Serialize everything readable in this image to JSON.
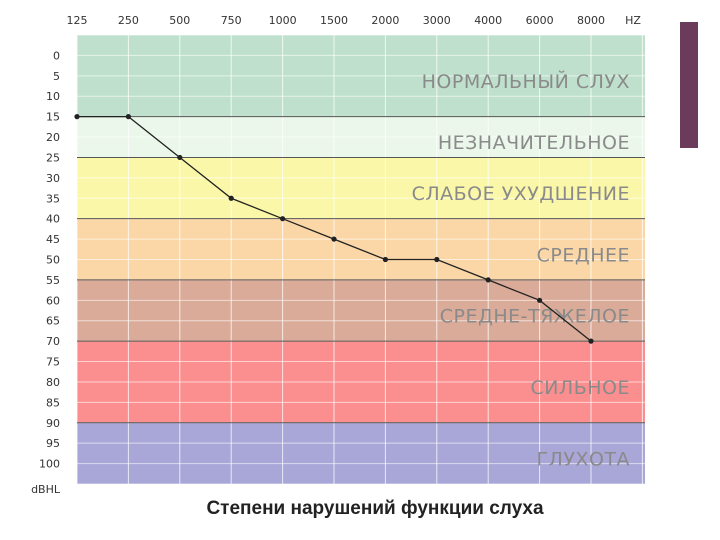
{
  "caption": "Степени нарушений функции слуха",
  "colors": {
    "sidebar_accent": "#6b3b5c",
    "line": "#222222"
  },
  "chart_data": {
    "type": "line",
    "x_ticks": [
      "125",
      "250",
      "500",
      "750",
      "1000",
      "1500",
      "2000",
      "3000",
      "4000",
      "6000",
      "8000"
    ],
    "x_unit_label": "HZ",
    "y_unit_label": "dBHL",
    "ylim": [
      -5,
      105
    ],
    "y_inverted": true,
    "y_ticks": [
      0,
      5,
      10,
      15,
      20,
      25,
      30,
      35,
      40,
      45,
      50,
      55,
      60,
      65,
      70,
      75,
      80,
      85,
      90,
      95,
      100
    ],
    "grid": true,
    "series": [
      {
        "x": [
          "125",
          "250",
          "500",
          "750",
          "1000",
          "1500",
          "2000",
          "3000",
          "4000",
          "6000",
          "8000"
        ],
        "values": [
          15,
          15,
          25,
          35,
          40,
          45,
          50,
          50,
          55,
          60,
          70
        ]
      }
    ],
    "bands": [
      {
        "label": "НОРМАЛЬНЫЙ СЛУХ",
        "from": -5,
        "to": 15,
        "color": "#bfe0cc"
      },
      {
        "label": "НЕЗНАЧИТЕЛЬНОЕ",
        "from": 15,
        "to": 25,
        "color": "#eaf7ea"
      },
      {
        "label": "СЛАБОЕ УХУДШЕНИЕ",
        "from": 25,
        "to": 40,
        "color": "#fbf7a8"
      },
      {
        "label": "СРЕДНЕЕ",
        "from": 40,
        "to": 55,
        "color": "#fbd7a8"
      },
      {
        "label": "СРЕДНЕ-ТЯЖЕЛОЕ",
        "from": 55,
        "to": 70,
        "color": "#d9ab98"
      },
      {
        "label": "СИЛЬНОЕ",
        "from": 70,
        "to": 90,
        "color": "#fb8f8f"
      },
      {
        "label": "ГЛУХОТА",
        "from": 90,
        "to": 105,
        "color": "#a9a6d8"
      }
    ]
  }
}
